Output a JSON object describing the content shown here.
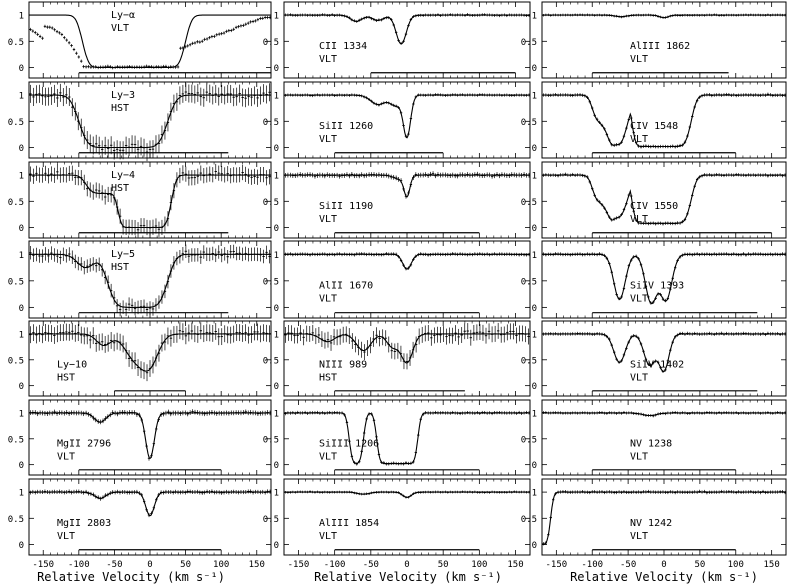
{
  "figure": {
    "xlabel": "Relative Velocity (km s⁻¹)",
    "xticks": [
      -150,
      -100,
      -50,
      0,
      50,
      100,
      150
    ],
    "yticks": [
      0,
      0.5,
      1
    ]
  },
  "chart_data": [
    {
      "type": "line",
      "col": 0,
      "row": 0,
      "ion": "Ly−α",
      "inst": "VLT",
      "wave": "",
      "profile": {
        "kind": "lya"
      },
      "bar": [
        -100,
        170
      ],
      "ylim": [
        -0.2,
        1.25
      ],
      "xlim": [
        -170,
        170
      ]
    },
    {
      "type": "line",
      "col": 0,
      "row": 1,
      "ion": "Ly−3",
      "inst": "HST",
      "wave": "",
      "profile": {
        "kind": "box",
        "x0": -100,
        "x1": 25,
        "w": 14,
        "noise": 0.18
      },
      "bar": [
        -100,
        110
      ],
      "ylim": [
        -0.2,
        1.25
      ],
      "xlim": [
        -170,
        170
      ]
    },
    {
      "type": "line",
      "col": 0,
      "row": 2,
      "ion": "Ly−4",
      "inst": "HST",
      "wave": "",
      "profile": {
        "kind": "step",
        "noise": 0.15
      },
      "bar": [
        -100,
        110
      ],
      "ylim": [
        -0.2,
        1.25
      ],
      "xlim": [
        -170,
        170
      ]
    },
    {
      "type": "line",
      "col": 0,
      "row": 3,
      "ion": "Ly−5",
      "inst": "HST",
      "wave": "",
      "profile": {
        "kind": "box",
        "x0": -60,
        "x1": 25,
        "w": 13,
        "noise": 0.13,
        "shoulder": true
      },
      "bar": [
        -100,
        110
      ],
      "ylim": [
        -0.2,
        1.25
      ],
      "xlim": [
        -170,
        170
      ]
    },
    {
      "type": "line",
      "col": 0,
      "row": 4,
      "ion": "Ly−10",
      "inst": "HST",
      "wave": "",
      "profile": {
        "kind": "gauss",
        "comps": [
          [
            -65,
            0.22,
            10
          ],
          [
            -22,
            0.45,
            14
          ],
          [
            0,
            0.55,
            12
          ]
        ],
        "noise": 0.17
      },
      "bar": [
        -50,
        50
      ],
      "ylim": [
        -0.2,
        1.25
      ],
      "xlim": [
        -170,
        170
      ]
    },
    {
      "type": "line",
      "col": 0,
      "row": 5,
      "ion": "MgII",
      "inst": "VLT",
      "wave": "2796",
      "profile": {
        "kind": "gauss",
        "comps": [
          [
            -70,
            0.18,
            8
          ],
          [
            0,
            0.88,
            6
          ]
        ],
        "noise": 0.05
      },
      "bar": [
        -100,
        100
      ],
      "ylim": [
        -0.2,
        1.25
      ],
      "xlim": [
        -170,
        170
      ]
    },
    {
      "type": "line",
      "col": 0,
      "row": 6,
      "ion": "MgII",
      "inst": "VLT",
      "wave": "2803",
      "profile": {
        "kind": "gauss",
        "comps": [
          [
            -70,
            0.12,
            8
          ],
          [
            0,
            0.45,
            6
          ]
        ],
        "noise": 0.04
      },
      "bar": [
        -100,
        100
      ],
      "ylim": [
        -0.2,
        1.25
      ],
      "xlim": [
        -170,
        170
      ]
    },
    {
      "type": "line",
      "col": 1,
      "row": 0,
      "ion": "CII",
      "inst": "VLT",
      "wave": "1334",
      "profile": {
        "kind": "gauss",
        "comps": [
          [
            -70,
            0.12,
            8
          ],
          [
            -40,
            0.1,
            8
          ],
          [
            -8,
            0.55,
            7
          ]
        ],
        "noise": 0.025
      },
      "bar": [
        -50,
        150
      ],
      "ylim": [
        -0.2,
        1.25
      ],
      "xlim": [
        -170,
        170
      ]
    },
    {
      "type": "line",
      "col": 1,
      "row": 1,
      "ion": "SiII",
      "inst": "VLT",
      "wave": "1260",
      "profile": {
        "kind": "gauss",
        "comps": [
          [
            -40,
            0.18,
            10
          ],
          [
            -15,
            0.2,
            8
          ],
          [
            0,
            0.78,
            5
          ]
        ],
        "noise": 0.025
      },
      "bar": [
        -100,
        50
      ],
      "ylim": [
        -0.2,
        1.25
      ],
      "xlim": [
        -170,
        170
      ]
    },
    {
      "type": "line",
      "col": 1,
      "row": 2,
      "ion": "SiII",
      "inst": "VLT",
      "wave": "1190",
      "profile": {
        "kind": "gauss",
        "comps": [
          [
            -10,
            0.08,
            8
          ],
          [
            0,
            0.38,
            4
          ]
        ],
        "noise": 0.05
      },
      "bar": [
        -100,
        100
      ],
      "ylim": [
        -0.2,
        1.25
      ],
      "xlim": [
        -170,
        170
      ]
    },
    {
      "type": "line",
      "col": 1,
      "row": 3,
      "ion": "AlII",
      "inst": "VLT",
      "wave": "1670",
      "profile": {
        "kind": "gauss",
        "comps": [
          [
            0,
            0.28,
            6
          ]
        ],
        "noise": 0.03
      },
      "bar": [
        -100,
        100
      ],
      "ylim": [
        -0.2,
        1.25
      ],
      "xlim": [
        -170,
        170
      ]
    },
    {
      "type": "line",
      "col": 1,
      "row": 4,
      "ion": "NIII",
      "inst": "HST",
      "wave": "989",
      "profile": {
        "kind": "gauss",
        "comps": [
          [
            -110,
            0.15,
            10
          ],
          [
            -60,
            0.32,
            10
          ],
          [
            -20,
            0.25,
            8
          ],
          [
            0,
            0.55,
            8
          ]
        ],
        "noise": 0.16
      },
      "bar": [
        -100,
        80
      ],
      "ylim": [
        -0.2,
        1.25
      ],
      "xlim": [
        -170,
        170
      ]
    },
    {
      "type": "line",
      "col": 1,
      "row": 5,
      "ion": "SiIII",
      "inst": "VLT",
      "wave": "1206",
      "profile": {
        "kind": "box2",
        "x0": -80,
        "x1": -60,
        "x2": -42,
        "x3": 15,
        "w": 5
      },
      "bar": [
        -100,
        100
      ],
      "ylim": [
        -0.2,
        1.25
      ],
      "xlim": [
        -170,
        170
      ]
    },
    {
      "type": "line",
      "col": 1,
      "row": 6,
      "ion": "AlIII",
      "inst": "VLT",
      "wave": "1854",
      "profile": {
        "kind": "gauss",
        "comps": [
          [
            -60,
            0.04,
            8
          ],
          [
            0,
            0.1,
            6
          ]
        ],
        "noise": 0.02
      },
      "bar": [
        -100,
        100
      ],
      "ylim": [
        -0.2,
        1.25
      ],
      "xlim": [
        -170,
        170
      ]
    },
    {
      "type": "line",
      "col": 2,
      "row": 0,
      "ion": "AlIII",
      "inst": "VLT",
      "wave": "1862",
      "profile": {
        "kind": "gauss",
        "comps": [
          [
            -60,
            0.03,
            8
          ],
          [
            0,
            0.05,
            6
          ]
        ],
        "noise": 0.02
      },
      "bar": [
        -100,
        90
      ],
      "ylim": [
        -0.2,
        1.25
      ],
      "xlim": [
        -170,
        170
      ]
    },
    {
      "type": "line",
      "col": 2,
      "row": 1,
      "ion": "CIV",
      "inst": "VLT",
      "wave": "1548",
      "profile": {
        "kind": "civ",
        "d1": 0.92,
        "d2": 0.98
      },
      "bar": [
        -100,
        100
      ],
      "ylim": [
        -0.2,
        1.25
      ],
      "xlim": [
        -170,
        170
      ]
    },
    {
      "type": "line",
      "col": 2,
      "row": 2,
      "ion": "CIV",
      "inst": "VLT",
      "wave": "1550",
      "profile": {
        "kind": "civ",
        "d1": 0.78,
        "d2": 0.92
      },
      "bar": [
        -100,
        150
      ],
      "ylim": [
        -0.2,
        1.25
      ],
      "xlim": [
        -170,
        170
      ]
    },
    {
      "type": "line",
      "col": 2,
      "row": 3,
      "ion": "SiIV",
      "inst": "VLT",
      "wave": "1393",
      "profile": {
        "kind": "gauss",
        "comps": [
          [
            -62,
            0.85,
            8
          ],
          [
            -18,
            0.9,
            8
          ],
          [
            3,
            0.85,
            8
          ]
        ],
        "noise": 0.03
      },
      "bar": [
        -100,
        130
      ],
      "ylim": [
        -0.2,
        1.25
      ],
      "xlim": [
        -170,
        170
      ]
    },
    {
      "type": "line",
      "col": 2,
      "row": 4,
      "ion": "SiIV",
      "inst": "VLT",
      "wave": "1402",
      "profile": {
        "kind": "gauss",
        "comps": [
          [
            -62,
            0.55,
            8
          ],
          [
            -20,
            0.6,
            8
          ],
          [
            0,
            0.7,
            7
          ]
        ],
        "noise": 0.03
      },
      "bar": [
        -100,
        130
      ],
      "ylim": [
        -0.2,
        1.25
      ],
      "xlim": [
        -170,
        170
      ]
    },
    {
      "type": "line",
      "col": 2,
      "row": 5,
      "ion": "NV",
      "inst": "VLT",
      "wave": "1238",
      "profile": {
        "kind": "gauss",
        "comps": [
          [
            -20,
            0.05,
            10
          ]
        ],
        "noise": 0.025
      },
      "bar": [
        -100,
        100
      ],
      "ylim": [
        -0.2,
        1.25
      ],
      "xlim": [
        -170,
        170
      ]
    },
    {
      "type": "line",
      "col": 2,
      "row": 6,
      "ion": "NV",
      "inst": "VLT",
      "wave": "1242",
      "profile": {
        "kind": "edge"
      },
      "bar": [
        -100,
        100
      ],
      "ylim": [
        -0.2,
        1.25
      ],
      "xlim": [
        -170,
        170
      ]
    }
  ]
}
